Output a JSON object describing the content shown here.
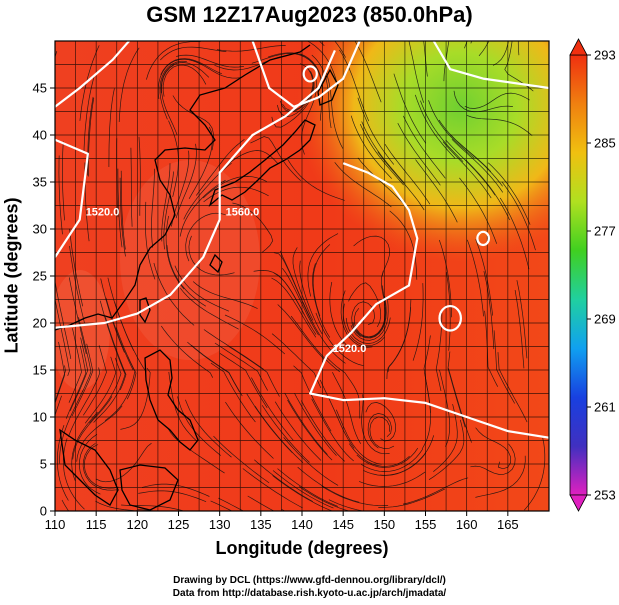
{
  "chart_data": {
    "type": "heatmap",
    "title": "GSM 12Z17Aug2023 (850.0hPa)",
    "xlabel": "Longitude (degrees)",
    "ylabel": "Latitude  (degrees)",
    "xlim": [
      110,
      170
    ],
    "ylim": [
      0,
      50
    ],
    "xticks": [
      110,
      115,
      120,
      125,
      130,
      135,
      140,
      145,
      150,
      155,
      160,
      165
    ],
    "yticks": [
      0,
      5,
      10,
      15,
      20,
      25,
      30,
      35,
      40,
      45
    ],
    "grid": true,
    "overlays": [
      "coastlines",
      "streamlines",
      "geopotential height contours"
    ],
    "colorbar": {
      "min": 253,
      "max": 293,
      "ticks": [
        293,
        285,
        277,
        269,
        261,
        253
      ],
      "colors": [
        "#e020c0",
        "#4030c0",
        "#1840e0",
        "#10a0f0",
        "#20d0a0",
        "#40d020",
        "#b0e020",
        "#f0c010",
        "#f08010",
        "#f03010"
      ]
    },
    "contours": [
      {
        "label": "1560.0",
        "line": [
          [
            110,
            19.5
          ],
          [
            116,
            20
          ],
          [
            120,
            21
          ],
          [
            124,
            23
          ],
          [
            128,
            27
          ],
          [
            130,
            31
          ],
          [
            130,
            36
          ],
          [
            134,
            40
          ],
          [
            138,
            42
          ],
          [
            142,
            45
          ],
          [
            144,
            49
          ]
        ]
      },
      {
        "label": "1520.0",
        "line": [
          [
            145,
            37
          ],
          [
            148,
            36
          ],
          [
            151,
            34.5
          ],
          [
            153,
            32
          ],
          [
            154,
            29
          ],
          [
            153,
            24
          ],
          [
            149,
            22
          ],
          [
            146,
            19
          ],
          [
            143,
            16.5
          ],
          [
            141,
            12.5
          ],
          [
            145,
            11.8
          ],
          [
            150,
            12
          ],
          [
            155,
            11.5
          ],
          [
            160,
            10
          ],
          [
            165,
            8.5
          ],
          [
            170,
            7.8
          ]
        ]
      },
      {
        "label": "1520.0",
        "line": [
          [
            110,
            39.5
          ],
          [
            114,
            38
          ],
          [
            113,
            31
          ],
          [
            110,
            27
          ]
        ]
      },
      {
        "label": "",
        "line": [
          [
            134,
            50
          ],
          [
            136,
            45
          ],
          [
            139,
            43
          ],
          [
            142,
            44
          ],
          [
            145,
            46
          ],
          [
            147,
            50
          ]
        ]
      },
      {
        "label": "",
        "line": [
          [
            156,
            50
          ],
          [
            158,
            47
          ],
          [
            162,
            46
          ],
          [
            170,
            45
          ]
        ]
      },
      {
        "label": "",
        "line": [
          [
            110,
            43
          ],
          [
            113,
            45
          ],
          [
            117,
            48
          ],
          [
            119,
            50
          ]
        ]
      }
    ],
    "closed_contours": [
      {
        "center": [
          141,
          46.5
        ],
        "radius": 0.8
      },
      {
        "center": [
          158,
          20.5
        ],
        "radius": 1.3
      },
      {
        "center": [
          162,
          29
        ],
        "radius": 0.7
      }
    ]
  },
  "footer": {
    "credit_line_1": "Drawing by DCL (https://www.gfd-dennou.org/library/dcl/)",
    "credit_line_2": "Data from http://database.rish.kyoto-u.ac.jp/arch/jmadata/"
  }
}
